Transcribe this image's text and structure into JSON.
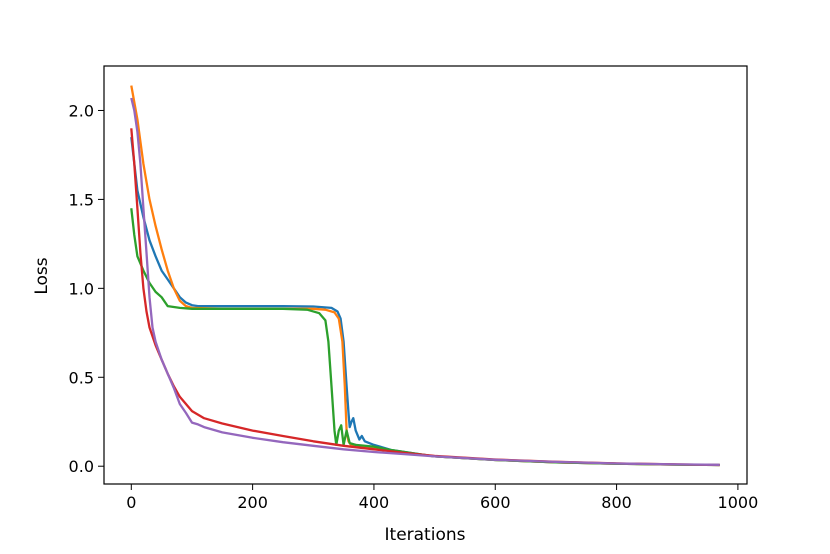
{
  "chart_data": {
    "type": "line",
    "title": "",
    "xlabel": "Iterations",
    "ylabel": "Loss",
    "xlim": [
      -45,
      1015
    ],
    "ylim": [
      -0.1,
      2.25
    ],
    "x_ticks": [
      0,
      200,
      400,
      600,
      800,
      1000
    ],
    "x_tick_labels": [
      "0",
      "200",
      "400",
      "600",
      "800",
      "1000"
    ],
    "y_ticks": [
      0.0,
      0.5,
      1.0,
      1.5,
      2.0
    ],
    "y_tick_labels": [
      "0.0",
      "0.5",
      "1.0",
      "1.5",
      "2.0"
    ],
    "grid": false,
    "legend": "none",
    "series": [
      {
        "color": "#1f77b4",
        "points": [
          [
            0,
            1.85
          ],
          [
            10,
            1.55
          ],
          [
            20,
            1.4
          ],
          [
            30,
            1.27
          ],
          [
            40,
            1.18
          ],
          [
            50,
            1.1
          ],
          [
            60,
            1.05
          ],
          [
            70,
            1.0
          ],
          [
            80,
            0.95
          ],
          [
            90,
            0.92
          ],
          [
            100,
            0.905
          ],
          [
            110,
            0.9
          ],
          [
            150,
            0.9
          ],
          [
            200,
            0.9
          ],
          [
            250,
            0.9
          ],
          [
            300,
            0.898
          ],
          [
            330,
            0.89
          ],
          [
            340,
            0.87
          ],
          [
            345,
            0.83
          ],
          [
            350,
            0.7
          ],
          [
            355,
            0.45
          ],
          [
            358,
            0.3
          ],
          [
            360,
            0.22
          ],
          [
            363,
            0.25
          ],
          [
            366,
            0.27
          ],
          [
            370,
            0.2
          ],
          [
            376,
            0.15
          ],
          [
            380,
            0.17
          ],
          [
            385,
            0.14
          ],
          [
            400,
            0.12
          ],
          [
            430,
            0.09
          ],
          [
            470,
            0.07
          ],
          [
            500,
            0.055
          ],
          [
            600,
            0.035
          ],
          [
            700,
            0.022
          ],
          [
            800,
            0.014
          ],
          [
            900,
            0.009
          ],
          [
            970,
            0.007
          ]
        ]
      },
      {
        "color": "#ff7f0e",
        "points": [
          [
            0,
            2.14
          ],
          [
            10,
            1.95
          ],
          [
            20,
            1.7
          ],
          [
            30,
            1.5
          ],
          [
            40,
            1.35
          ],
          [
            50,
            1.22
          ],
          [
            60,
            1.1
          ],
          [
            70,
            1.0
          ],
          [
            80,
            0.93
          ],
          [
            90,
            0.9
          ],
          [
            100,
            0.89
          ],
          [
            150,
            0.885
          ],
          [
            200,
            0.885
          ],
          [
            250,
            0.885
          ],
          [
            300,
            0.885
          ],
          [
            320,
            0.88
          ],
          [
            335,
            0.865
          ],
          [
            342,
            0.83
          ],
          [
            348,
            0.7
          ],
          [
            352,
            0.45
          ],
          [
            355,
            0.2
          ],
          [
            358,
            0.14
          ],
          [
            362,
            0.12
          ],
          [
            370,
            0.12
          ],
          [
            380,
            0.11
          ],
          [
            400,
            0.1
          ],
          [
            450,
            0.075
          ],
          [
            500,
            0.055
          ],
          [
            600,
            0.035
          ],
          [
            700,
            0.022
          ],
          [
            800,
            0.014
          ],
          [
            900,
            0.009
          ],
          [
            970,
            0.007
          ]
        ]
      },
      {
        "color": "#2ca02c",
        "points": [
          [
            0,
            1.45
          ],
          [
            5,
            1.3
          ],
          [
            10,
            1.18
          ],
          [
            20,
            1.1
          ],
          [
            30,
            1.03
          ],
          [
            40,
            0.98
          ],
          [
            50,
            0.95
          ],
          [
            60,
            0.9
          ],
          [
            70,
            0.895
          ],
          [
            80,
            0.89
          ],
          [
            100,
            0.885
          ],
          [
            150,
            0.885
          ],
          [
            200,
            0.885
          ],
          [
            250,
            0.885
          ],
          [
            290,
            0.88
          ],
          [
            310,
            0.86
          ],
          [
            320,
            0.82
          ],
          [
            325,
            0.7
          ],
          [
            330,
            0.45
          ],
          [
            335,
            0.2
          ],
          [
            338,
            0.12
          ],
          [
            342,
            0.2
          ],
          [
            346,
            0.23
          ],
          [
            350,
            0.12
          ],
          [
            355,
            0.2
          ],
          [
            360,
            0.13
          ],
          [
            370,
            0.12
          ],
          [
            400,
            0.11
          ],
          [
            430,
            0.09
          ],
          [
            470,
            0.07
          ],
          [
            500,
            0.055
          ],
          [
            600,
            0.035
          ],
          [
            700,
            0.022
          ],
          [
            800,
            0.014
          ],
          [
            900,
            0.009
          ],
          [
            970,
            0.007
          ]
        ]
      },
      {
        "color": "#d62728",
        "points": [
          [
            0,
            1.9
          ],
          [
            5,
            1.7
          ],
          [
            10,
            1.45
          ],
          [
            15,
            1.2
          ],
          [
            20,
            1.0
          ],
          [
            25,
            0.87
          ],
          [
            30,
            0.78
          ],
          [
            40,
            0.68
          ],
          [
            50,
            0.6
          ],
          [
            60,
            0.52
          ],
          [
            70,
            0.45
          ],
          [
            80,
            0.39
          ],
          [
            100,
            0.31
          ],
          [
            120,
            0.27
          ],
          [
            150,
            0.24
          ],
          [
            200,
            0.2
          ],
          [
            250,
            0.17
          ],
          [
            300,
            0.14
          ],
          [
            350,
            0.115
          ],
          [
            400,
            0.095
          ],
          [
            450,
            0.075
          ],
          [
            500,
            0.058
          ],
          [
            600,
            0.038
          ],
          [
            700,
            0.025
          ],
          [
            800,
            0.016
          ],
          [
            900,
            0.01
          ],
          [
            970,
            0.007
          ]
        ]
      },
      {
        "color": "#9467bd",
        "points": [
          [
            0,
            2.07
          ],
          [
            5,
            2.0
          ],
          [
            10,
            1.88
          ],
          [
            15,
            1.7
          ],
          [
            20,
            1.45
          ],
          [
            25,
            1.2
          ],
          [
            30,
            0.95
          ],
          [
            35,
            0.78
          ],
          [
            40,
            0.7
          ],
          [
            50,
            0.6
          ],
          [
            60,
            0.52
          ],
          [
            70,
            0.44
          ],
          [
            80,
            0.35
          ],
          [
            90,
            0.3
          ],
          [
            100,
            0.245
          ],
          [
            110,
            0.235
          ],
          [
            120,
            0.22
          ],
          [
            150,
            0.19
          ],
          [
            200,
            0.16
          ],
          [
            250,
            0.135
          ],
          [
            300,
            0.115
          ],
          [
            350,
            0.095
          ],
          [
            400,
            0.08
          ],
          [
            450,
            0.068
          ],
          [
            500,
            0.055
          ],
          [
            600,
            0.036
          ],
          [
            700,
            0.024
          ],
          [
            800,
            0.015
          ],
          [
            900,
            0.01
          ],
          [
            970,
            0.008
          ]
        ]
      }
    ]
  }
}
